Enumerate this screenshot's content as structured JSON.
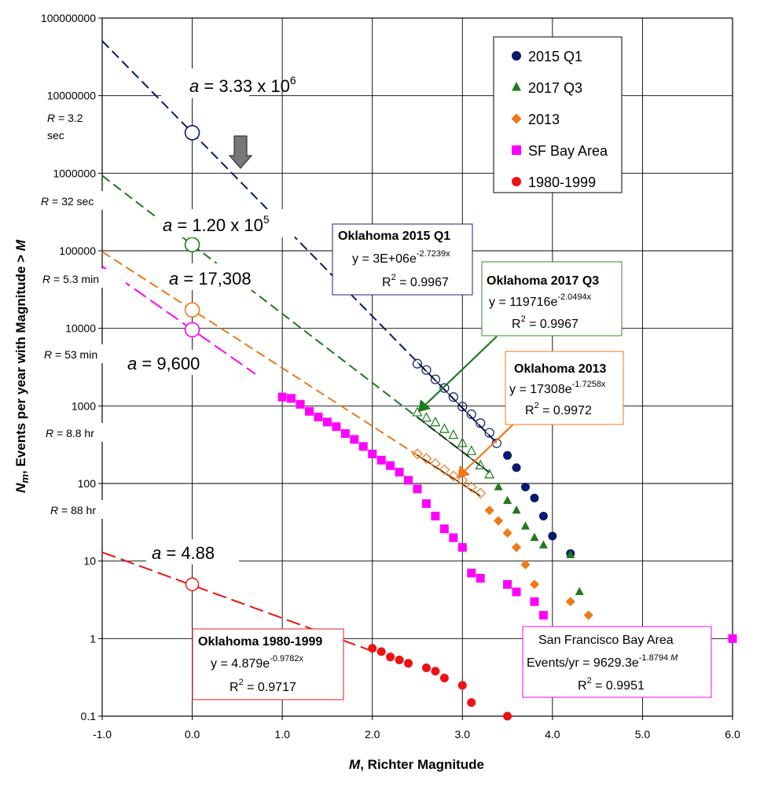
{
  "chart_data": {
    "type": "scatter",
    "title": "",
    "xlabel_var": "M",
    "xlabel_rest": ", Richter Magnitude",
    "ylabel_var": "N",
    "ylabel_sub": "m",
    "ylabel_rest": ", Events per year with Magnitude > ",
    "ylabel_var2": "M",
    "xlim": [
      -1.0,
      6.0
    ],
    "ylim": [
      0.1,
      100000000
    ],
    "yscale": "log",
    "grid": true,
    "legend_position": "top-right",
    "x_ticks": [
      "-1.0",
      "0.0",
      "1.0",
      "2.0",
      "3.0",
      "4.0",
      "5.0",
      "6.0"
    ],
    "y_ticks": [
      "0.1",
      "1",
      "10",
      "100",
      "1000",
      "10000",
      "100000",
      "1000000",
      "10000000",
      "100000000"
    ],
    "series": [
      {
        "name": "2015 Q1",
        "color": "#0a1a6e",
        "marker": "circle",
        "hollow_x": [
          2.5,
          2.6,
          2.7,
          2.8,
          2.9,
          3.0,
          3.1,
          3.2,
          3.3,
          3.38
        ],
        "hollow_y": [
          3500,
          2900,
          2200,
          1700,
          1300,
          980,
          780,
          600,
          450,
          330
        ],
        "x": [
          3.5,
          3.6,
          3.7,
          3.8,
          3.9,
          4.0,
          4.2
        ],
        "y": [
          230,
          160,
          90,
          65,
          38,
          21,
          12.5
        ]
      },
      {
        "name": "2017 Q3",
        "color": "#1f7a1f",
        "marker": "triangle",
        "hollow_x": [
          2.5,
          2.6,
          2.7,
          2.8,
          2.9,
          3.0,
          3.1,
          3.2,
          3.3
        ],
        "hollow_y": [
          820,
          700,
          610,
          500,
          420,
          330,
          260,
          170,
          130
        ],
        "x": [
          3.4,
          3.5,
          3.6,
          3.7,
          3.8,
          3.9,
          4.2,
          4.3
        ],
        "y": [
          90,
          60,
          45,
          28,
          20,
          16,
          12,
          4
        ]
      },
      {
        "name": "2013",
        "color": "#f07818",
        "marker": "diamond",
        "hollow_x": [
          2.5,
          2.6,
          2.7,
          2.8,
          2.9,
          3.0,
          3.1,
          3.2
        ],
        "hollow_y": [
          240,
          210,
          180,
          150,
          125,
          110,
          90,
          75
        ],
        "x": [
          3.3,
          3.4,
          3.5,
          3.6,
          3.7,
          3.8,
          4.2,
          4.4
        ],
        "y": [
          45,
          33,
          23,
          15,
          9,
          5,
          3,
          2
        ]
      },
      {
        "name": "SF Bay Area",
        "color": "#ff00ff",
        "marker": "square",
        "x": [
          1.0,
          1.1,
          1.2,
          1.3,
          1.4,
          1.5,
          1.6,
          1.7,
          1.8,
          1.9,
          2.0,
          2.1,
          2.2,
          2.3,
          2.4,
          2.5,
          2.6,
          2.7,
          2.8,
          2.9,
          3.0,
          3.1,
          3.2,
          3.5,
          3.6,
          3.8,
          3.9,
          6.0
        ],
        "y": [
          1300,
          1250,
          1050,
          850,
          720,
          620,
          540,
          440,
          370,
          300,
          240,
          200,
          170,
          140,
          110,
          85,
          55,
          38,
          26,
          20,
          15,
          7,
          6,
          5,
          4,
          3,
          2,
          1
        ]
      },
      {
        "name": "1980-1999",
        "color": "#ee1111",
        "marker": "circle",
        "hollow_x": [
          0.0
        ],
        "hollow_y": [
          5
        ],
        "x": [
          2.0,
          2.1,
          2.2,
          2.3,
          2.4,
          2.6,
          2.7,
          2.8,
          3.0,
          3.1,
          3.5
        ],
        "y": [
          0.75,
          0.68,
          0.58,
          0.53,
          0.48,
          0.42,
          0.38,
          0.31,
          0.25,
          0.15,
          0.1
        ]
      }
    ],
    "fit_lines": [
      {
        "name": "2015 Q1",
        "color": "#0a1a6e",
        "a": 3330000,
        "b": 2.7239,
        "x_range": [
          -1.0,
          3.4
        ],
        "dash": "12,6"
      },
      {
        "name": "2017 Q3",
        "color": "#1f7a1f",
        "a": 119716,
        "b": 2.0494,
        "x_range": [
          -1.0,
          3.3
        ],
        "dash": "12,6"
      },
      {
        "name": "2013",
        "color": "#f07818",
        "a": 17308,
        "b": 1.7258,
        "x_range": [
          -1.0,
          3.2
        ],
        "dash": "12,6"
      },
      {
        "name": "SF Bay Area",
        "color": "#ff00ff",
        "a": 9629.3,
        "b": 1.8794,
        "x_range": [
          -1.0,
          0.7
        ],
        "dash": "18,7"
      },
      {
        "name": "1980-1999",
        "color": "#ee1111",
        "a": 4.879,
        "b": 0.9782,
        "x_range": [
          -1.0,
          2.0
        ],
        "dash": "18,7"
      }
    ],
    "intercept_markers": [
      {
        "x": 0.0,
        "y": 3330000,
        "color": "#0a1a6e"
      },
      {
        "x": 0.0,
        "y": 120000,
        "color": "#1f7a1f"
      },
      {
        "x": 0.0,
        "y": 17308,
        "color": "#f07818"
      },
      {
        "x": 0.0,
        "y": 9600,
        "color": "#ff00ff"
      }
    ],
    "a_labels": [
      {
        "prefix": "a",
        "eq": " = 3.33 x 10",
        "sup": "6"
      },
      {
        "prefix": "a",
        "eq": " = 1.20 x 10",
        "sup": "5"
      },
      {
        "prefix": "a",
        "eq": " = 17,308",
        "sup": ""
      },
      {
        "prefix": "a",
        "eq": " = 9,600",
        "sup": ""
      },
      {
        "prefix": "a",
        "eq": " = 4.88",
        "sup": ""
      }
    ],
    "r_labels": [
      {
        "var": "R",
        "rest": " = 3.2",
        "line2": "sec"
      },
      {
        "var": "R",
        "rest": " = 32 sec",
        "line2": ""
      },
      {
        "var": "R",
        "rest": " = 5.3 min",
        "line2": ""
      },
      {
        "var": "R",
        "rest": " = 53 min",
        "line2": ""
      },
      {
        "var": "R",
        "rest": " = 8.8 hr",
        "line2": ""
      },
      {
        "var": "R",
        "rest": " = 88 hr",
        "line2": ""
      }
    ],
    "equation_boxes": [
      {
        "title": "Oklahoma 2015 Q1",
        "line1": "y = 3E+06e",
        "exp": "-2.7239x",
        "r2_pre": "R",
        "r2_sup": "2",
        "r2_val": " = 0.9967",
        "border": "#1a237e"
      },
      {
        "title": "Oklahoma 2017 Q3",
        "line1": "y = 119716e",
        "exp": "-2.0494x",
        "r2_pre": "R",
        "r2_sup": "2",
        "r2_val": " = 0.9967",
        "border": "#2e8b2e"
      },
      {
        "title": "Oklahoma 2013",
        "line1": "y = 17308e",
        "exp": "-1.7258x",
        "r2_pre": "R",
        "r2_sup": "2",
        "r2_val": " = 0.9972",
        "border": "#f07818"
      },
      {
        "title": "Oklahoma 1980-1999",
        "line1": "y = 4.879e",
        "exp": "-0.9782x",
        "r2_pre": "R",
        "r2_sup": "2",
        "r2_val": " = 0.9717",
        "border": "#dd2222"
      },
      {
        "title": "San Francisco Bay Area",
        "line1": "Events/yr = 9629.3e",
        "exp": "-1.8794 ",
        "exp_var": "M",
        "r2_pre": "R",
        "r2_sup": "2",
        "r2_val": " = 0.9951",
        "border": "#ff00ff"
      }
    ]
  }
}
